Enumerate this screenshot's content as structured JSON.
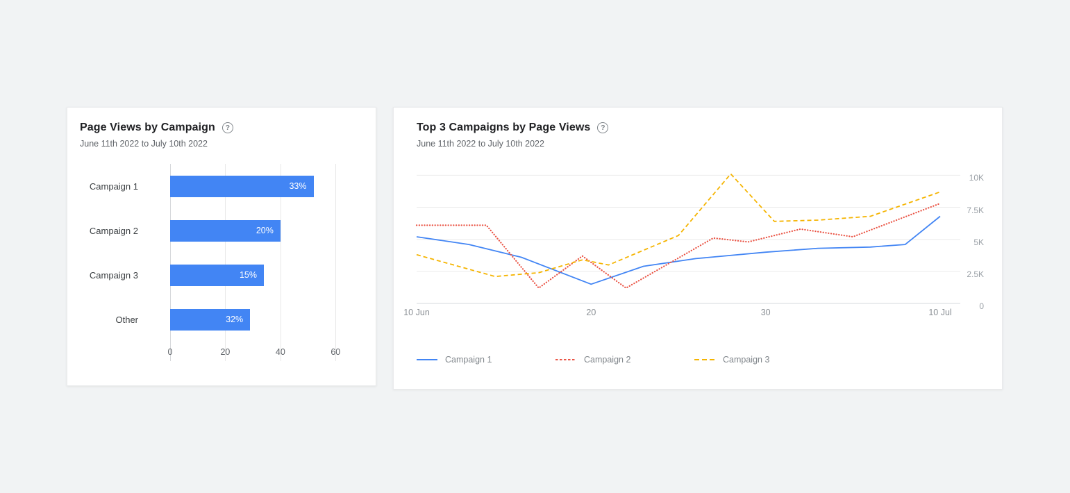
{
  "canvas": {
    "background": "#f1f3f4"
  },
  "icons": {
    "help_glyph": "?"
  },
  "bar_card": {
    "title": "Page Views by Campaign",
    "subtitle": "June 11th 2022 to July 10th 2022"
  },
  "line_card": {
    "title": "Top 3 Campaigns by Page Views",
    "subtitle": "June 11th 2022 to July 10th 2022"
  },
  "chart_data": [
    {
      "type": "bar",
      "title": "Page Views by Campaign",
      "subtitle": "June 11th 2022 to July 10th 2022",
      "orientation": "horizontal",
      "categories": [
        "Campaign 1",
        "Campaign 2",
        "Campaign 3",
        "Other"
      ],
      "values": [
        52,
        40,
        34,
        29
      ],
      "bar_labels": [
        "33%",
        "20%",
        "15%",
        "32%"
      ],
      "x_ticks": [
        0,
        20,
        40,
        60
      ],
      "xlim": [
        0,
        70
      ],
      "bar_color": "#4285f4",
      "grid": true,
      "legend": "none"
    },
    {
      "type": "line",
      "title": "Top 3 Campaigns by Page Views",
      "subtitle": "June 11th 2022 to July 10th 2022",
      "x_unit": "days since 10 Jun 2022",
      "x_range": [
        0,
        30
      ],
      "x_ticks": [
        {
          "x": 0,
          "label": "10 Jun"
        },
        {
          "x": 10,
          "label": "20"
        },
        {
          "x": 20,
          "label": "30"
        },
        {
          "x": 30,
          "label": "10 Jul"
        }
      ],
      "y_max": 10400,
      "y_ticks": [
        {
          "value": 0,
          "label": "0"
        },
        {
          "value": 2500,
          "label": "2.5K"
        },
        {
          "value": 5000,
          "label": "5K"
        },
        {
          "value": 7500,
          "label": "7.5K"
        },
        {
          "value": 10000,
          "label": "10K"
        }
      ],
      "y_axis_position": "right",
      "grid": true,
      "legend_position": "bottom",
      "series": [
        {
          "name": "Campaign 1",
          "color": "#4285f4",
          "line_style": "solid",
          "points": [
            [
              0,
              5200
            ],
            [
              3,
              4600
            ],
            [
              6,
              3600
            ],
            [
              10,
              1500
            ],
            [
              13,
              2900
            ],
            [
              16,
              3500
            ],
            [
              20,
              4000
            ],
            [
              23,
              4300
            ],
            [
              26,
              4400
            ],
            [
              28,
              4600
            ],
            [
              30,
              6800
            ]
          ]
        },
        {
          "name": "Campaign 2",
          "color": "#ea5546",
          "line_style": "dotted",
          "points": [
            [
              0,
              6100
            ],
            [
              4,
              6100
            ],
            [
              7,
              1200
            ],
            [
              9.5,
              3700
            ],
            [
              12,
              1200
            ],
            [
              17,
              5100
            ],
            [
              19,
              4800
            ],
            [
              22,
              5800
            ],
            [
              25,
              5200
            ],
            [
              30,
              7800
            ]
          ]
        },
        {
          "name": "Campaign 3",
          "color": "#f5b400",
          "line_style": "dashed",
          "points": [
            [
              0,
              3800
            ],
            [
              4.5,
              2100
            ],
            [
              7,
              2400
            ],
            [
              9.5,
              3400
            ],
            [
              11,
              3000
            ],
            [
              15,
              5300
            ],
            [
              18,
              10100
            ],
            [
              20.5,
              6400
            ],
            [
              23,
              6500
            ],
            [
              26,
              6800
            ],
            [
              30,
              8700
            ]
          ]
        }
      ]
    }
  ]
}
